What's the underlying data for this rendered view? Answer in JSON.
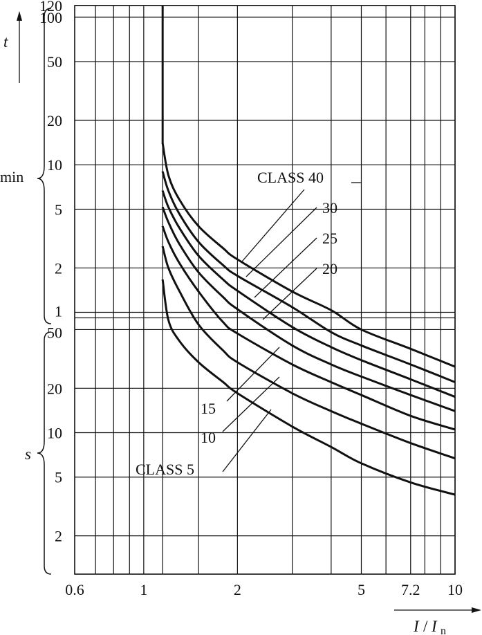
{
  "chart_data": {
    "type": "line",
    "x_scale": "log",
    "y_scale": "log",
    "xlim": [
      0.6,
      10
    ],
    "grid": true,
    "x_ticks": [
      {
        "value": 0.6,
        "label": "0.6"
      },
      {
        "value": 1,
        "label": "1"
      },
      {
        "value": 2,
        "label": "2"
      },
      {
        "value": 5,
        "label": "5"
      },
      {
        "value": 7.2,
        "label": "7.2"
      },
      {
        "value": 10,
        "label": "10"
      }
    ],
    "x_gridlines": [
      0.7,
      0.8,
      0.9,
      1,
      1.15,
      1.5,
      2,
      3,
      4,
      5,
      6,
      7.2,
      8,
      9,
      10
    ],
    "x_axis": {
      "name": "I",
      "sub": "n"
    },
    "y_axis": {
      "name": "t"
    },
    "y_ticks_min": [
      {
        "value": 120,
        "label": "120"
      },
      {
        "value": 100,
        "label": "100"
      },
      {
        "value": 50,
        "label": "50"
      },
      {
        "value": 20,
        "label": "20"
      },
      {
        "value": 10,
        "label": "10"
      },
      {
        "value": 5,
        "label": "5"
      },
      {
        "value": 2,
        "label": "2"
      },
      {
        "value": 1,
        "label": "1"
      }
    ],
    "y_ticks_s": [
      {
        "value": 50,
        "label": "50"
      },
      {
        "value": 20,
        "label": "20"
      },
      {
        "value": 10,
        "label": "10"
      },
      {
        "value": 5,
        "label": "5"
      },
      {
        "value": 2,
        "label": "2"
      }
    ],
    "unit_min": "min",
    "unit_s": "s",
    "pickup_x": 1.15,
    "series": [
      {
        "name": "CLASS 40",
        "x": [
          1.15,
          1.2,
          1.3,
          1.5,
          1.8,
          2,
          3,
          4,
          5,
          7.2,
          10
        ],
        "y_s": [
          840,
          510,
          350,
          230,
          163,
          137,
          83,
          62,
          50,
          37,
          28
        ]
      },
      {
        "name": "30",
        "x": [
          1.15,
          1.2,
          1.3,
          1.5,
          1.8,
          2,
          3,
          4,
          5,
          7.2,
          10
        ],
        "y_s": [
          540,
          400,
          280,
          180,
          125,
          106,
          65,
          48,
          39,
          29,
          22
        ]
      },
      {
        "name": "25",
        "x": [
          1.15,
          1.2,
          1.3,
          1.5,
          1.8,
          2,
          3,
          4,
          5,
          7.2,
          10
        ],
        "y_s": [
          400,
          310,
          225,
          145,
          100,
          84,
          52,
          38,
          31,
          23,
          17.5
        ]
      },
      {
        "name": "20",
        "x": [
          1.15,
          1.2,
          1.3,
          1.5,
          1.8,
          2,
          3,
          4,
          5,
          7.2,
          10
        ],
        "y_s": [
          310,
          245,
          175,
          112,
          76,
          63,
          39,
          29,
          24,
          18,
          14
        ]
      },
      {
        "name": "15",
        "x": [
          1.15,
          1.2,
          1.3,
          1.5,
          1.8,
          2,
          3,
          4,
          5,
          7.2,
          10
        ],
        "y_s": [
          230,
          180,
          130,
          83,
          56,
          47,
          29,
          22,
          18,
          13,
          10.5
        ]
      },
      {
        "name": "10",
        "x": [
          1.15,
          1.2,
          1.3,
          1.5,
          1.8,
          2,
          3,
          4,
          5,
          7.2,
          10
        ],
        "y_s": [
          168,
          120,
          84,
          54,
          36,
          30,
          18.5,
          14,
          11.5,
          8.5,
          6.7
        ]
      },
      {
        "name": "CLASS 5",
        "x": [
          1.15,
          1.2,
          1.3,
          1.5,
          1.8,
          2,
          3,
          4,
          5,
          7.2,
          10
        ],
        "y_s": [
          100,
          58,
          42,
          30,
          22,
          18.5,
          11,
          8,
          6.2,
          4.6,
          3.8
        ]
      }
    ]
  }
}
